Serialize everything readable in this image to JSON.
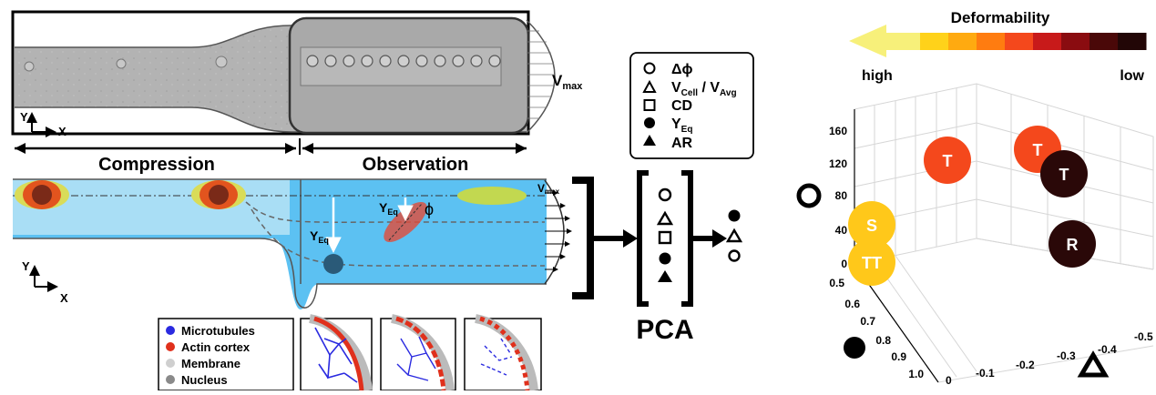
{
  "micrograph": {
    "axis_y": "Y",
    "axis_x": "X",
    "vmax": "V",
    "vmax_sub": "max"
  },
  "regions": {
    "compression": "Compression",
    "observation": "Observation"
  },
  "schematic": {
    "axis_y": "Y",
    "axis_x": "X",
    "vmax": "V",
    "vmax_sub": "max",
    "yeq1": "Y",
    "yeq1_sub": "Eq",
    "yeq2": "Y",
    "yeq2_sub": "Eq",
    "phi": "ϕ"
  },
  "legend_params": [
    {
      "symbol": "circle-open",
      "text": "Δϕ",
      "sub": "",
      "text2": "",
      "sub2": ""
    },
    {
      "symbol": "triangle-open",
      "text": "V",
      "sub": "Cell",
      "text2": " / V",
      "sub2": "Avg"
    },
    {
      "symbol": "square-open",
      "text": "CD",
      "sub": "",
      "text2": "",
      "sub2": ""
    },
    {
      "symbol": "circle-filled",
      "text": "Y",
      "sub": "Eq",
      "text2": "",
      "sub2": ""
    },
    {
      "symbol": "triangle-filled",
      "text": "AR",
      "sub": "",
      "text2": "",
      "sub2": ""
    }
  ],
  "pca": {
    "label": "PCA"
  },
  "cell_legend": [
    {
      "label": "Microtubules",
      "color": "#2a2ae0"
    },
    {
      "label": "Actin cortex",
      "color": "#e0301c"
    },
    {
      "label": "Membrane",
      "color": "#cfcfcf"
    },
    {
      "label": "Nucleus",
      "color": "#8a8a8a"
    }
  ],
  "deformability": {
    "title": "Deformability",
    "high": "high",
    "low": "low",
    "gradient_colors": [
      "#fff27a",
      "#ffd21a",
      "#ffaa10",
      "#ff7c10",
      "#f4481c",
      "#c81a1a",
      "#8a0c10",
      "#4a0808",
      "#220606"
    ]
  },
  "chart_data": {
    "type": "scatter",
    "title": "",
    "z_axis_ticks": [
      "0",
      "40",
      "80",
      "120",
      "160"
    ],
    "y_axis_ticks": [
      "0.5",
      "0.6",
      "0.7",
      "0.8",
      "0.9",
      "1.0"
    ],
    "x_axis_ticks": [
      "0",
      "-0.1",
      "-0.2",
      "-0.3",
      "-0.4",
      "-0.5"
    ],
    "points": [
      {
        "label": "T",
        "color": "#f4481c"
      },
      {
        "label": "T",
        "color": "#f4481c"
      },
      {
        "label": "T",
        "color": "#2a0808"
      },
      {
        "label": "S",
        "color": "#ffc81a"
      },
      {
        "label": "TT",
        "color": "#ffc81a"
      },
      {
        "label": "R",
        "color": "#2a0808"
      }
    ]
  }
}
